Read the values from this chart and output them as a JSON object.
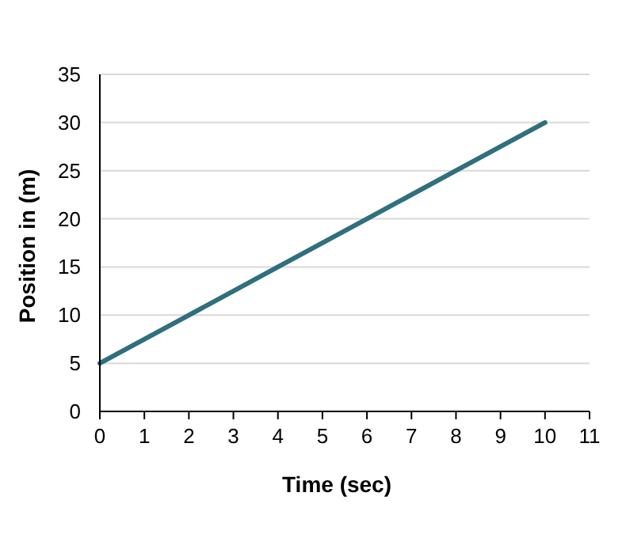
{
  "chart_data": {
    "type": "line",
    "xlabel": "Time (sec)",
    "ylabel": "Position in (m)",
    "x": [
      0,
      2,
      4,
      6,
      8,
      10
    ],
    "series": [
      {
        "color": "#2f6f7e",
        "values": [
          5,
          10,
          15,
          20,
          25,
          30
        ]
      }
    ],
    "xlim": [
      0,
      11
    ],
    "xticks": [
      0,
      1,
      2,
      3,
      4,
      5,
      6,
      7,
      8,
      9,
      10,
      11
    ],
    "ylim": [
      0,
      35
    ],
    "yticks": [
      0,
      5,
      10,
      15,
      20,
      25,
      30,
      35
    ],
    "grid": "y",
    "marker": "none",
    "line_style": "solid"
  }
}
